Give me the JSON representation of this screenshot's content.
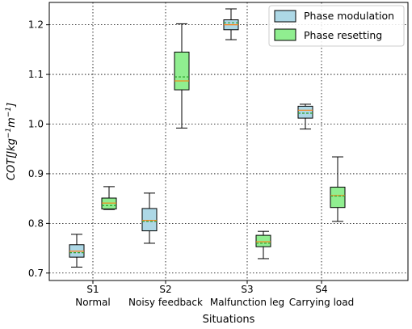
{
  "chart_data": {
    "type": "box",
    "xlabel": "Situations",
    "ylabel": "COT[Jkg^{-1}m^{-1}]",
    "ylabel_parts": {
      "main": "COT[",
      "kg": "Jkg",
      "sup1": "−1",
      "m": "m",
      "sup2": "−1",
      "close": "]"
    },
    "ylim": [
      0.685,
      1.245
    ],
    "yticks": [
      0.7,
      0.8,
      0.9,
      1.0,
      1.1,
      1.2
    ],
    "ytick_labels": [
      "0.7",
      "0.8",
      "0.9",
      "1.0",
      "1.1",
      "1.2"
    ],
    "grid": true,
    "legend_position": "top-right",
    "categories": [
      {
        "code": "S1",
        "name": "Normal"
      },
      {
        "code": "S2",
        "name": "Noisy feedback"
      },
      {
        "code": "S3",
        "name": "Malfunction leg"
      },
      {
        "code": "S4",
        "name": "Carrying load"
      }
    ],
    "series": [
      {
        "name": "Phase modulation",
        "color": "#add8e6",
        "boxes": [
          {
            "whisker_low": 0.712,
            "q1": 0.732,
            "median": 0.744,
            "mean": 0.741,
            "q3": 0.757,
            "whisker_high": 0.778
          },
          {
            "whisker_low": 0.76,
            "q1": 0.785,
            "median": 0.806,
            "mean": 0.804,
            "q3": 0.83,
            "whisker_high": 0.861
          },
          {
            "whisker_low": 1.17,
            "q1": 1.19,
            "median": 1.2,
            "mean": 1.204,
            "q3": 1.21,
            "whisker_high": 1.232
          },
          {
            "whisker_low": 0.99,
            "q1": 1.012,
            "median": 1.028,
            "mean": 1.022,
            "q3": 1.036,
            "whisker_high": 1.04
          }
        ]
      },
      {
        "name": "Phase resetting",
        "color": "#90ee90",
        "boxes": [
          {
            "whisker_low": 0.828,
            "q1": 0.829,
            "median": 0.841,
            "mean": 0.836,
            "q3": 0.851,
            "whisker_high": 0.874
          },
          {
            "whisker_low": 0.992,
            "q1": 1.069,
            "median": 1.087,
            "mean": 1.095,
            "q3": 1.145,
            "whisker_high": 1.202
          },
          {
            "whisker_low": 0.729,
            "q1": 0.753,
            "median": 0.763,
            "mean": 0.76,
            "q3": 0.776,
            "whisker_high": 0.784
          },
          {
            "whisker_low": 0.804,
            "q1": 0.832,
            "median": 0.856,
            "mean": 0.855,
            "q3": 0.873,
            "whisker_high": 0.934
          }
        ]
      }
    ],
    "median_color": "#ff7f0e",
    "mean_color": "#2ca02c"
  }
}
